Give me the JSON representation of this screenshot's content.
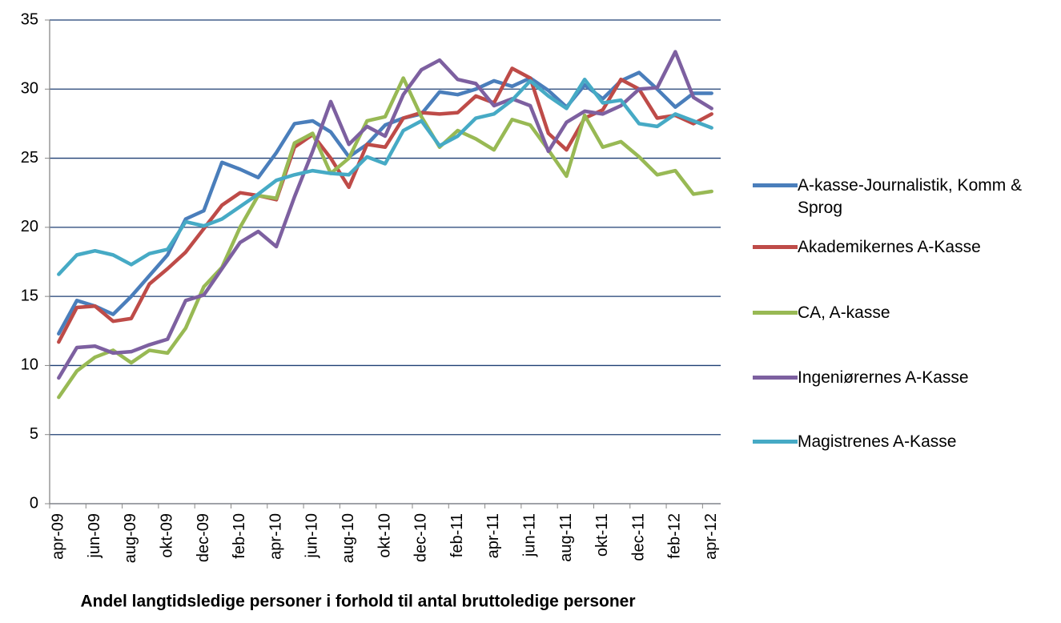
{
  "chart_data": {
    "type": "line",
    "title": "Andel langtidsledige personer i forhold til antal bruttoledige personer",
    "categories": [
      "apr-09",
      null,
      "jun-09",
      null,
      "aug-09",
      null,
      "okt-09",
      null,
      "dec-09",
      null,
      "feb-10",
      null,
      "apr-10",
      null,
      "jun-10",
      null,
      "aug-10",
      null,
      "okt-10",
      null,
      "dec-10",
      null,
      "feb-11",
      null,
      "apr-11",
      null,
      "jun-11",
      null,
      "aug-11",
      null,
      "okt-11",
      null,
      "dec-11",
      null,
      "feb-12",
      null,
      "apr-12"
    ],
    "series": [
      {
        "name": "A-kasse-Journalistik, Komm & Sprog",
        "color": "#4a7ebb",
        "values": [
          12.3,
          14.7,
          14.3,
          13.7,
          15.0,
          16.5,
          18.0,
          20.6,
          21.2,
          24.7,
          24.2,
          23.6,
          25.4,
          27.5,
          27.7,
          26.9,
          25.1,
          26.0,
          27.4,
          27.9,
          28.2,
          29.8,
          29.6,
          30.0,
          30.6,
          30.2,
          30.8,
          29.9,
          28.7,
          30.3,
          29.3,
          30.6,
          31.2,
          30.0,
          28.7,
          29.7,
          29.7
        ]
      },
      {
        "name": "Akademikernes A-Kasse",
        "color": "#be4b48",
        "values": [
          11.7,
          14.2,
          14.3,
          13.2,
          13.4,
          15.9,
          17.0,
          18.2,
          19.9,
          21.6,
          22.5,
          22.3,
          22.0,
          25.8,
          26.7,
          25.0,
          22.9,
          26.0,
          25.8,
          27.9,
          28.3,
          28.2,
          28.3,
          29.5,
          29.0,
          31.5,
          30.8,
          26.8,
          25.6,
          27.9,
          28.5,
          30.7,
          30.0,
          27.9,
          28.1,
          27.5,
          28.2
        ]
      },
      {
        "name": "CA, A-kasse",
        "color": "#98b954",
        "values": [
          7.7,
          9.6,
          10.6,
          11.1,
          10.2,
          11.1,
          10.9,
          12.7,
          15.7,
          17.1,
          20.0,
          22.3,
          22.1,
          26.1,
          26.8,
          23.9,
          25.0,
          27.7,
          28.0,
          30.8,
          28.0,
          25.8,
          27.0,
          26.4,
          25.6,
          27.8,
          27.4,
          25.6,
          23.7,
          28.1,
          25.8,
          26.2,
          25.1,
          23.8,
          24.1,
          22.4,
          22.6
        ]
      },
      {
        "name": "Ingeniørernes A-Kasse",
        "color": "#7d60a0",
        "values": [
          9.1,
          11.3,
          11.4,
          10.9,
          11.0,
          11.5,
          11.9,
          14.7,
          15.1,
          17.0,
          18.9,
          19.7,
          18.6,
          22.2,
          25.5,
          29.1,
          26.0,
          27.3,
          26.6,
          29.6,
          31.4,
          32.1,
          30.7,
          30.4,
          28.8,
          29.3,
          28.8,
          25.5,
          27.6,
          28.4,
          28.2,
          28.8,
          30.0,
          30.1,
          32.7,
          29.4,
          28.6
        ]
      },
      {
        "name": "Magistrenes A-Kasse",
        "color": "#46aac5",
        "values": [
          16.6,
          18.0,
          18.3,
          18.0,
          17.3,
          18.1,
          18.4,
          20.4,
          20.1,
          20.6,
          21.5,
          22.4,
          23.4,
          23.8,
          24.1,
          23.9,
          23.8,
          25.1,
          24.6,
          27.0,
          27.7,
          25.9,
          26.6,
          27.9,
          28.2,
          29.2,
          30.6,
          29.5,
          28.6,
          30.7,
          29.0,
          29.2,
          27.5,
          27.3,
          28.2,
          27.7,
          27.2
        ]
      }
    ],
    "ylim": [
      0,
      35
    ],
    "yticks": [
      0,
      5,
      10,
      15,
      20,
      25,
      30,
      35
    ],
    "grid": true,
    "legend": "right"
  }
}
